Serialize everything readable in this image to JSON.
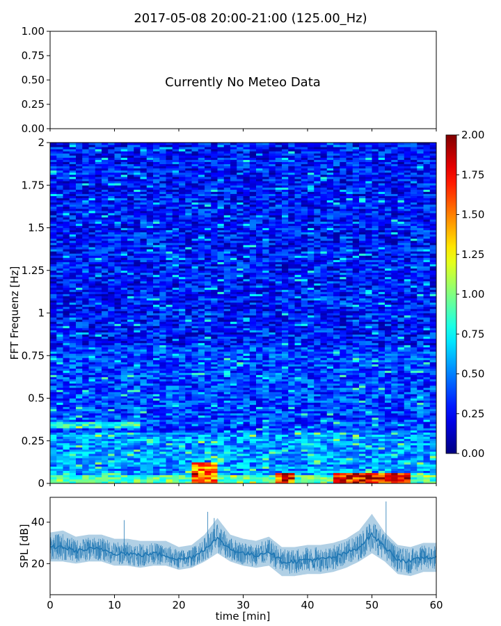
{
  "figure": {
    "title": "2017-05-08 20:00-21:00 (125.00_Hz)"
  },
  "chart_data": [
    {
      "type": "line",
      "panel": "meteo",
      "title": "",
      "xlabel": "",
      "ylabel": "",
      "ylim": [
        0,
        1
      ],
      "y_ticks": [
        "0.00",
        "0.25",
        "0.50",
        "0.75",
        "1.00"
      ],
      "xlim": [
        0,
        60
      ],
      "x_ticks_shown": false,
      "annotation": "Currently No Meteo Data",
      "series": []
    },
    {
      "type": "heatmap",
      "panel": "spectrogram",
      "title": "",
      "xlabel": "",
      "ylabel": "FFT Frequenz [Hz]",
      "xlim": [
        0,
        60
      ],
      "x_ticks_shown": false,
      "ylim": [
        0,
        2
      ],
      "y_ticks": [
        "0",
        "0.25",
        "0.5",
        "0.75",
        "1",
        "1.25",
        "1.5",
        "1.75",
        "2"
      ],
      "colormap": "jet",
      "colorbar": {
        "range": [
          0,
          2
        ],
        "ticks": [
          "0.00",
          "0.25",
          "0.50",
          "0.75",
          "1.00",
          "1.25",
          "1.50",
          "1.75",
          "2.00"
        ]
      },
      "time_bins_min": 60,
      "freq_bins_hz": 160,
      "typical_level_by_band": [
        {
          "freq_hz": [
            0.0,
            0.05
          ],
          "level": 0.9
        },
        {
          "freq_hz": [
            0.05,
            0.3
          ],
          "level": 0.55
        },
        {
          "freq_hz": [
            0.3,
            0.8
          ],
          "level": 0.38
        },
        {
          "freq_hz": [
            0.8,
            2.0
          ],
          "level": 0.28
        }
      ],
      "hotspots": [
        {
          "time_min": [
            22,
            26
          ],
          "freq_hz": [
            0.0,
            0.12
          ],
          "level": 1.5
        },
        {
          "time_min": [
            35,
            38
          ],
          "freq_hz": [
            0.0,
            0.06
          ],
          "level": 1.6
        },
        {
          "time_min": [
            44,
            56
          ],
          "freq_hz": [
            0.0,
            0.06
          ],
          "level": 1.7
        },
        {
          "time_min": [
            0,
            14
          ],
          "freq_hz": [
            0.33,
            0.36
          ],
          "level": 0.8
        }
      ]
    },
    {
      "type": "area",
      "panel": "spl",
      "title": "",
      "xlabel": "time [min]",
      "ylabel": "SPL [dB]",
      "xlim": [
        0,
        60
      ],
      "ylim": [
        5,
        52
      ],
      "x_ticks": [
        "0",
        "10",
        "20",
        "30",
        "40",
        "50",
        "60"
      ],
      "y_ticks": [
        "20",
        "40"
      ],
      "color": "#1f77b4",
      "x": [
        0,
        2,
        4,
        6,
        8,
        10,
        12,
        14,
        16,
        18,
        20,
        22,
        24,
        25,
        26,
        28,
        30,
        32,
        34,
        36,
        38,
        40,
        42,
        44,
        46,
        48,
        50,
        52,
        54,
        56,
        58,
        60
      ],
      "mean": [
        28,
        28,
        26,
        27,
        27,
        25,
        25,
        24,
        25,
        24,
        22,
        23,
        27,
        30,
        32,
        27,
        25,
        24,
        26,
        21,
        21,
        22,
        22,
        23,
        25,
        28,
        34,
        28,
        22,
        21,
        23,
        23
      ],
      "lower": [
        21,
        21,
        20,
        21,
        21,
        19,
        19,
        18,
        19,
        19,
        17,
        18,
        21,
        23,
        25,
        21,
        19,
        18,
        19,
        14,
        14,
        15,
        15,
        16,
        18,
        21,
        25,
        21,
        15,
        14,
        16,
        16
      ],
      "upper": [
        35,
        36,
        33,
        34,
        34,
        32,
        32,
        31,
        31,
        31,
        28,
        29,
        34,
        38,
        42,
        34,
        32,
        31,
        33,
        28,
        28,
        29,
        29,
        30,
        32,
        36,
        44,
        35,
        29,
        28,
        30,
        30
      ],
      "spikes": [
        {
          "x": 11.5,
          "y": 41
        },
        {
          "x": 24.5,
          "y": 45
        },
        {
          "x": 25.5,
          "y": 42
        },
        {
          "x": 52.2,
          "y": 50
        }
      ]
    }
  ]
}
